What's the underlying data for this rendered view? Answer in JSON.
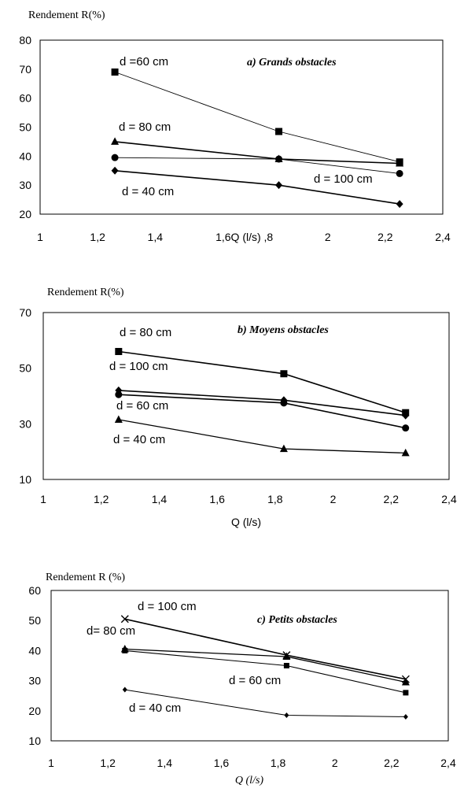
{
  "chart_data": [
    {
      "type": "line",
      "title": "a) Grands obstacles",
      "ylabel": "Rendement R(%)",
      "xlabel": "Q (l/s)",
      "xlim": [
        1,
        2.4
      ],
      "ylim": [
        20,
        80
      ],
      "x_ticks": [
        "1",
        "1,2",
        "1,4",
        "1,6Q (l/s) ,8",
        "2",
        "2,2",
        "2,4"
      ],
      "y_ticks": [
        "20",
        "30",
        "40",
        "50",
        "60",
        "70",
        "80"
      ],
      "x": [
        1.26,
        1.83,
        2.25
      ],
      "series": [
        {
          "name": "d =60 cm",
          "marker": "square",
          "values": [
            69,
            48.5,
            38
          ]
        },
        {
          "name": "d = 80 cm",
          "marker": "triangle",
          "values": [
            45,
            39,
            37.5
          ]
        },
        {
          "name": "d = 100 cm",
          "marker": "circle",
          "values": [
            39.5,
            39,
            34
          ]
        },
        {
          "name": "d  = 40 cm",
          "marker": "diamond",
          "values": [
            35,
            30,
            23.5
          ]
        }
      ]
    },
    {
      "type": "line",
      "title": "b) Moyens obstacles",
      "ylabel": "Rendement R(%)",
      "xlabel": "Q (l/s)",
      "xlim": [
        1,
        2.4
      ],
      "ylim": [
        10,
        70
      ],
      "x_ticks": [
        "1",
        "1,2",
        "1,4",
        "1,6",
        "1,8",
        "2",
        "2,2",
        "2,4"
      ],
      "y_ticks": [
        "10",
        "30",
        "50",
        "70"
      ],
      "x": [
        1.26,
        1.83,
        2.25
      ],
      "series": [
        {
          "name": "d = 80 cm",
          "marker": "square",
          "values": [
            56,
            48,
            34
          ]
        },
        {
          "name": "d = 100 cm",
          "marker": "diamond",
          "values": [
            42,
            38.5,
            33
          ]
        },
        {
          "name": "d = 60 cm",
          "marker": "circle",
          "values": [
            40.5,
            37.5,
            28.5
          ]
        },
        {
          "name": "d = 40 cm",
          "marker": "triangle",
          "values": [
            31.5,
            21,
            19.5
          ]
        }
      ]
    },
    {
      "type": "line",
      "title": "c) Petits obstacles",
      "ylabel": "Rendement R (%)",
      "xlabel": "Q (l/s)",
      "xlim": [
        1,
        2.4
      ],
      "ylim": [
        10,
        60
      ],
      "x_ticks": [
        "1",
        "1,2",
        "1,4",
        "1,6",
        "1,8",
        "2",
        "2,2",
        "2,4"
      ],
      "y_ticks": [
        "10",
        "20",
        "30",
        "40",
        "50",
        "60"
      ],
      "x": [
        1.26,
        1.83,
        2.25
      ],
      "series": [
        {
          "name": "d = 100 cm",
          "marker": "x",
          "values": [
            50.5,
            38.5,
            30.5
          ]
        },
        {
          "name": "d= 80 cm",
          "marker": "triangle",
          "values": [
            40.5,
            38,
            29.5
          ]
        },
        {
          "name": "d = 60 cm",
          "marker": "small-square",
          "values": [
            40,
            35,
            26
          ]
        },
        {
          "name": "d = 40 cm",
          "marker": "small-diamond",
          "values": [
            27,
            18.5,
            18
          ]
        }
      ]
    }
  ]
}
